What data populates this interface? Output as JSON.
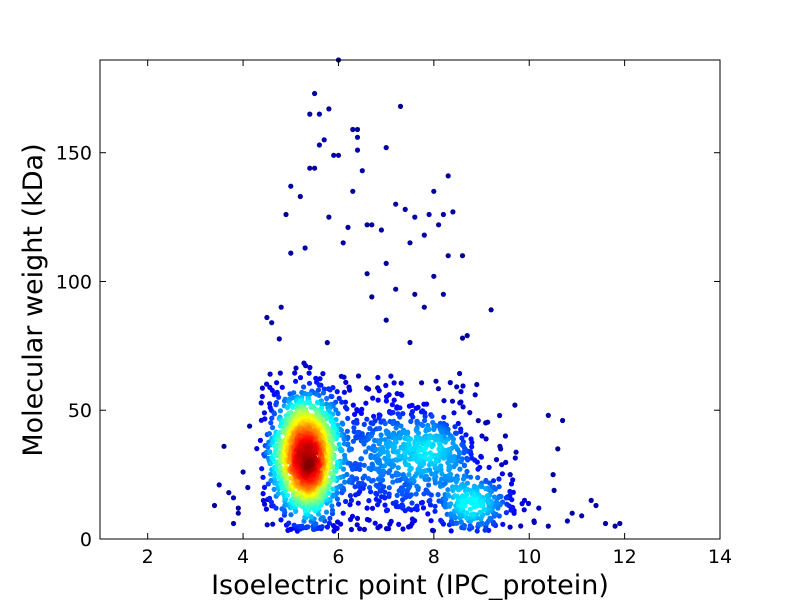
{
  "chart_data": {
    "type": "scatter",
    "title": "",
    "xlabel": "Isoelectric point (IPC_protein)",
    "ylabel": "Molecular weight (kDa)",
    "xlim": [
      1,
      14
    ],
    "ylim": [
      0,
      186
    ],
    "x_ticks": [
      2,
      4,
      6,
      8,
      10,
      12,
      14
    ],
    "y_ticks": [
      0,
      50,
      100,
      150
    ],
    "x_tick_labels": [
      "2",
      "4",
      "6",
      "8",
      "10",
      "12",
      "14"
    ],
    "y_tick_labels": [
      "0",
      "50",
      "100",
      "150"
    ],
    "grid": false,
    "legend": "none",
    "color_encoding": "point density (jet colormap: blue = low, red = high)",
    "colormap": [
      "#00008f",
      "#0000ff",
      "#0080ff",
      "#00ffff",
      "#80ff80",
      "#ffff00",
      "#ff8000",
      "#ff0000",
      "#800000"
    ],
    "clusters": [
      {
        "center_x": 5.3,
        "center_y": 32,
        "spread_x": 0.35,
        "spread_y": 13,
        "count": 1500
      },
      {
        "center_x": 8.0,
        "center_y": 33,
        "spread_x": 0.55,
        "spread_y": 11,
        "count": 420
      },
      {
        "center_x": 8.8,
        "center_y": 14,
        "spread_x": 0.45,
        "spread_y": 6,
        "count": 260
      },
      {
        "center_x": 6.8,
        "center_y": 30,
        "spread_x": 0.5,
        "spread_y": 14,
        "count": 320
      }
    ],
    "points": [
      [
        6.0,
        186
      ],
      [
        5.5,
        173
      ],
      [
        5.8,
        167
      ],
      [
        7.3,
        168
      ],
      [
        5.6,
        165
      ],
      [
        5.4,
        165
      ],
      [
        6.3,
        159
      ],
      [
        6.4,
        159
      ],
      [
        6.4,
        156
      ],
      [
        5.7,
        155
      ],
      [
        5.6,
        153
      ],
      [
        5.9,
        149
      ],
      [
        7.0,
        152
      ],
      [
        6.4,
        151
      ],
      [
        5.4,
        144
      ],
      [
        5.5,
        144
      ],
      [
        6.0,
        149
      ],
      [
        6.5,
        143
      ],
      [
        8.3,
        141
      ],
      [
        5.0,
        137
      ],
      [
        8.0,
        135
      ],
      [
        6.3,
        135
      ],
      [
        5.2,
        133
      ],
      [
        7.2,
        130
      ],
      [
        8.2,
        126
      ],
      [
        8.4,
        127
      ],
      [
        7.4,
        128
      ],
      [
        5.8,
        125
      ],
      [
        4.9,
        126
      ],
      [
        7.6,
        125
      ],
      [
        7.9,
        126
      ],
      [
        8.1,
        122
      ],
      [
        6.2,
        121
      ],
      [
        6.6,
        122
      ],
      [
        6.7,
        122
      ],
      [
        6.9,
        120
      ],
      [
        7.8,
        118
      ],
      [
        7.5,
        115
      ],
      [
        8.3,
        110
      ],
      [
        8.6,
        110
      ],
      [
        6.1,
        115
      ],
      [
        5.3,
        113
      ],
      [
        5.0,
        111
      ],
      [
        7.0,
        107
      ],
      [
        6.6,
        103
      ],
      [
        8.0,
        102
      ],
      [
        7.2,
        97
      ],
      [
        7.6,
        95
      ],
      [
        8.2,
        95
      ],
      [
        6.7,
        94
      ],
      [
        4.8,
        90
      ],
      [
        7.8,
        90
      ],
      [
        8.6,
        78
      ],
      [
        8.7,
        79
      ],
      [
        4.5,
        86
      ],
      [
        4.6,
        84
      ],
      [
        9.2,
        89
      ],
      [
        7.0,
        85
      ],
      [
        8.9,
        60
      ],
      [
        9.7,
        52
      ],
      [
        10.4,
        48
      ],
      [
        10.7,
        46
      ],
      [
        10.6,
        35
      ],
      [
        10.5,
        25
      ],
      [
        9.5,
        40
      ],
      [
        9.4,
        35
      ],
      [
        9.6,
        25
      ],
      [
        9.9,
        15
      ],
      [
        10.2,
        12
      ],
      [
        10.9,
        10
      ],
      [
        11.3,
        15
      ],
      [
        11.4,
        13
      ],
      [
        11.9,
        6
      ],
      [
        11.8,
        5
      ],
      [
        11.6,
        6
      ],
      [
        11.1,
        9
      ],
      [
        10.8,
        7
      ],
      [
        10.4,
        5
      ],
      [
        10.1,
        7
      ],
      [
        3.6,
        36
      ],
      [
        3.5,
        21
      ],
      [
        3.4,
        13
      ],
      [
        3.8,
        16
      ],
      [
        3.7,
        18
      ],
      [
        3.8,
        6
      ],
      [
        3.9,
        10
      ],
      [
        4.0,
        26
      ],
      [
        4.1,
        20
      ],
      [
        3.9,
        12
      ],
      [
        6.1,
        10
      ],
      [
        6.4,
        8
      ],
      [
        6.6,
        12
      ]
    ]
  }
}
